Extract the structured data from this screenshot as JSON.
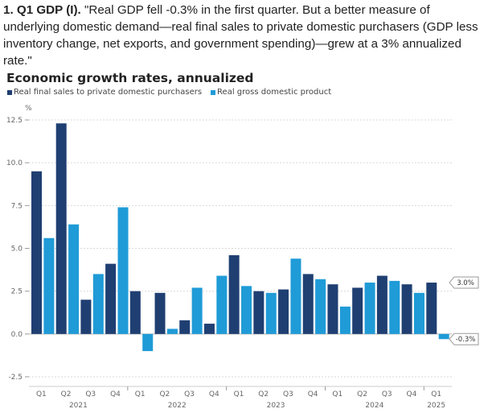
{
  "intro": {
    "heading": "1. Q1 GDP (I).",
    "quote": " \"Real GDP fell -0.3% in the first quarter. But a better measure of underlying domestic demand—real final sales to private domestic purchasers (GDP less inventory change, net exports, and government spending)—grew at a 3% annualized rate.\""
  },
  "colors": {
    "series_dark": "#1f3f72",
    "series_light": "#1f9bd7",
    "grid": "#d9d9d9",
    "axis_text": "#666666",
    "callout_border": "#9a9a9a"
  },
  "chart_data": {
    "type": "bar",
    "title": "Economic growth rates, annualized",
    "ylabel": "%",
    "ylim": [
      -2.5,
      12.5
    ],
    "yticks": [
      "12.5",
      "10.0",
      "7.5",
      "5.0",
      "2.5",
      "0.0",
      "-2.5"
    ],
    "ytick_values": [
      12.5,
      10.0,
      7.5,
      5.0,
      2.5,
      0.0,
      -2.5
    ],
    "categories": [
      "Q1",
      "Q2",
      "Q3",
      "Q4",
      "Q1",
      "Q2",
      "Q3",
      "Q4",
      "Q1",
      "Q2",
      "Q3",
      "Q4",
      "Q1",
      "Q2",
      "Q3",
      "Q4",
      "Q1"
    ],
    "years": [
      {
        "label": "2021",
        "start": 0,
        "end": 3
      },
      {
        "label": "2022",
        "start": 4,
        "end": 7
      },
      {
        "label": "2023",
        "start": 8,
        "end": 11
      },
      {
        "label": "2024",
        "start": 12,
        "end": 15
      },
      {
        "label": "2025",
        "start": 16,
        "end": 16
      }
    ],
    "series": [
      {
        "name": "Real final sales to private domestic purchasers",
        "values": [
          9.5,
          12.3,
          2.0,
          4.1,
          2.5,
          2.4,
          0.8,
          0.6,
          4.6,
          2.5,
          2.6,
          3.5,
          2.9,
          2.7,
          3.4,
          2.9,
          3.0
        ]
      },
      {
        "name": "Real gross domestic product",
        "values": [
          5.6,
          6.4,
          3.5,
          7.4,
          -1.0,
          0.3,
          2.7,
          3.4,
          2.8,
          2.4,
          4.4,
          3.2,
          1.6,
          3.0,
          3.1,
          2.4,
          -0.3
        ]
      }
    ],
    "callouts": [
      {
        "series": 0,
        "label": "3.0%",
        "value": 3.0
      },
      {
        "series": 1,
        "label": "-0.3%",
        "value": -0.3
      }
    ],
    "grid": true,
    "legend_position": "top-left"
  }
}
